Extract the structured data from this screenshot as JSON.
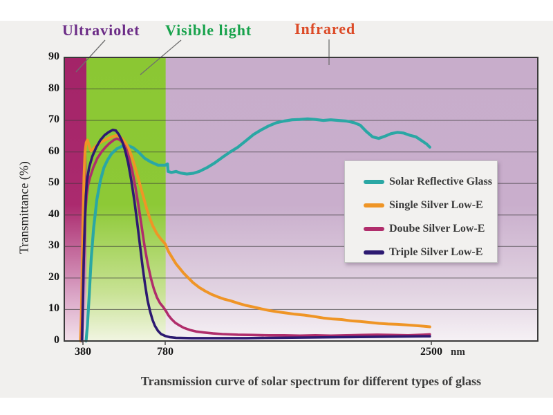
{
  "figure": {
    "caption": "Transmission curve of solar spectrum for different types of glass",
    "x_unit_label": "nm"
  },
  "chart_data": {
    "type": "line",
    "title": "Transmission curve of solar spectrum for different types of glass",
    "ylabel": "Transmittance (%)",
    "x_unit": "nm",
    "grid": true,
    "background_color": "#f1f0ee",
    "y_axis": {
      "min": 0,
      "max": 90,
      "ticks": [
        0,
        10,
        20,
        30,
        40,
        50,
        60,
        70,
        80,
        90
      ]
    },
    "x_axis": {
      "tick_labels": [
        "380",
        "780",
        "2500"
      ],
      "ticks_nm": [
        380,
        780,
        2500
      ],
      "anchors": [
        [
          380,
          0.0394
        ],
        [
          780,
          0.2131
        ],
        [
          2500,
          0.7752
        ]
      ]
    },
    "regions": [
      {
        "label": "Ultraviolet",
        "label_color": "#6b2b86",
        "start_nm": null,
        "end_nm": 397,
        "band_colors": [
          "#a32468",
          "#ab2a6e",
          "#d9a2c4",
          "#f2e0ea"
        ]
      },
      {
        "label": "Visible light",
        "label_color": "#17a24b",
        "start_nm": 397,
        "end_nm": 783,
        "band_colors": [
          "#8bc733",
          "#8dc936",
          "#c8e294",
          "#f1f5e2"
        ]
      },
      {
        "label": "Infrared",
        "label_color": "#dc4a26",
        "start_nm": 783,
        "end_nm": null,
        "band_colors": [
          "#c8adcb",
          "#c9aecc",
          "#e2d4e2",
          "#f6f1f5"
        ]
      }
    ],
    "legend": {
      "position": "right-middle",
      "entries": [
        "Solar Reflective Glass",
        "Single Silver Low-E",
        "Doube Silver Low-E",
        "Triple Silver Low-E"
      ]
    },
    "series": [
      {
        "name": "Solar Reflective Glass",
        "color": "#2aa7a4",
        "width": 4.2,
        "points": [
          [
            395,
            0
          ],
          [
            402,
            5
          ],
          [
            410,
            14
          ],
          [
            420,
            26
          ],
          [
            432,
            36
          ],
          [
            448,
            45
          ],
          [
            465,
            51
          ],
          [
            482,
            55
          ],
          [
            500,
            57.5
          ],
          [
            520,
            59.5
          ],
          [
            545,
            61
          ],
          [
            570,
            61.8
          ],
          [
            600,
            62
          ],
          [
            625,
            61.3
          ],
          [
            650,
            60
          ],
          [
            680,
            58
          ],
          [
            710,
            56.8
          ],
          [
            745,
            55.8
          ],
          [
            780,
            55.8
          ],
          [
            795,
            56.2
          ],
          [
            799,
            53.8
          ],
          [
            820,
            53.5
          ],
          [
            850,
            53.8
          ],
          [
            880,
            53.3
          ],
          [
            920,
            53
          ],
          [
            960,
            53.2
          ],
          [
            1000,
            53.8
          ],
          [
            1050,
            55
          ],
          [
            1100,
            56.5
          ],
          [
            1150,
            58.3
          ],
          [
            1200,
            60
          ],
          [
            1250,
            61.5
          ],
          [
            1300,
            63.5
          ],
          [
            1350,
            65.5
          ],
          [
            1400,
            67
          ],
          [
            1450,
            68.3
          ],
          [
            1500,
            69.3
          ],
          [
            1550,
            69.8
          ],
          [
            1600,
            70.2
          ],
          [
            1650,
            70.3
          ],
          [
            1700,
            70.5
          ],
          [
            1750,
            70.3
          ],
          [
            1800,
            70
          ],
          [
            1850,
            70.2
          ],
          [
            1900,
            70
          ],
          [
            1950,
            69.8
          ],
          [
            2000,
            69.3
          ],
          [
            2040,
            68.5
          ],
          [
            2080,
            66.5
          ],
          [
            2120,
            64.8
          ],
          [
            2160,
            64.3
          ],
          [
            2200,
            65
          ],
          [
            2240,
            65.8
          ],
          [
            2280,
            66.2
          ],
          [
            2320,
            66
          ],
          [
            2360,
            65.3
          ],
          [
            2400,
            64.8
          ],
          [
            2440,
            63.5
          ],
          [
            2470,
            62.5
          ],
          [
            2490,
            61.5
          ]
        ]
      },
      {
        "name": "Single Silver Low-E",
        "color": "#ef9526",
        "width": 4,
        "points": [
          [
            368,
            0
          ],
          [
            372,
            8
          ],
          [
            376,
            22
          ],
          [
            380,
            38
          ],
          [
            385,
            52
          ],
          [
            390,
            60
          ],
          [
            396,
            63
          ],
          [
            402,
            63.8
          ],
          [
            408,
            62.5
          ],
          [
            414,
            61
          ],
          [
            420,
            60.3
          ],
          [
            430,
            61
          ],
          [
            445,
            62
          ],
          [
            460,
            62.8
          ],
          [
            480,
            63.5
          ],
          [
            500,
            64.2
          ],
          [
            520,
            64.8
          ],
          [
            540,
            65.2
          ],
          [
            555,
            65
          ],
          [
            570,
            64.3
          ],
          [
            585,
            63
          ],
          [
            600,
            61.5
          ],
          [
            615,
            59
          ],
          [
            630,
            56
          ],
          [
            645,
            52.5
          ],
          [
            660,
            49
          ],
          [
            675,
            45.5
          ],
          [
            690,
            42
          ],
          [
            705,
            39
          ],
          [
            720,
            36.5
          ],
          [
            740,
            34
          ],
          [
            760,
            32.3
          ],
          [
            780,
            30.8
          ],
          [
            800,
            28.5
          ],
          [
            825,
            26.5
          ],
          [
            850,
            24.5
          ],
          [
            875,
            23
          ],
          [
            900,
            21.5
          ],
          [
            930,
            20
          ],
          [
            960,
            18.5
          ],
          [
            1000,
            17
          ],
          [
            1040,
            15.8
          ],
          [
            1080,
            14.8
          ],
          [
            1120,
            14
          ],
          [
            1160,
            13.3
          ],
          [
            1200,
            12.8
          ],
          [
            1250,
            12
          ],
          [
            1300,
            11.3
          ],
          [
            1350,
            10.8
          ],
          [
            1400,
            10.2
          ],
          [
            1450,
            9.7
          ],
          [
            1500,
            9.3
          ],
          [
            1560,
            8.9
          ],
          [
            1620,
            8.5
          ],
          [
            1680,
            8.2
          ],
          [
            1740,
            7.8
          ],
          [
            1800,
            7.3
          ],
          [
            1860,
            7
          ],
          [
            1920,
            6.8
          ],
          [
            1980,
            6.4
          ],
          [
            2040,
            6.2
          ],
          [
            2100,
            5.9
          ],
          [
            2160,
            5.6
          ],
          [
            2220,
            5.4
          ],
          [
            2280,
            5.3
          ],
          [
            2340,
            5.1
          ],
          [
            2400,
            4.9
          ],
          [
            2450,
            4.7
          ],
          [
            2490,
            4.5
          ]
        ]
      },
      {
        "name": "Doube Silver Low-E",
        "color": "#b02d6b",
        "width": 3.6,
        "points": [
          [
            374,
            0
          ],
          [
            378,
            10
          ],
          [
            382,
            22
          ],
          [
            387,
            33
          ],
          [
            392,
            41
          ],
          [
            398,
            46
          ],
          [
            405,
            49.5
          ],
          [
            415,
            52
          ],
          [
            430,
            55
          ],
          [
            450,
            58
          ],
          [
            470,
            60
          ],
          [
            490,
            61.5
          ],
          [
            510,
            62.8
          ],
          [
            530,
            63.8
          ],
          [
            545,
            64.2
          ],
          [
            560,
            63.8
          ],
          [
            575,
            62.8
          ],
          [
            590,
            61
          ],
          [
            605,
            58
          ],
          [
            620,
            54
          ],
          [
            635,
            49
          ],
          [
            650,
            43
          ],
          [
            665,
            36.5
          ],
          [
            680,
            30
          ],
          [
            695,
            24.5
          ],
          [
            710,
            20
          ],
          [
            725,
            16.5
          ],
          [
            740,
            13.8
          ],
          [
            755,
            12
          ],
          [
            770,
            10.8
          ],
          [
            785,
            9.5
          ],
          [
            800,
            8.2
          ],
          [
            820,
            7
          ],
          [
            845,
            5.8
          ],
          [
            870,
            5
          ],
          [
            900,
            4.2
          ],
          [
            940,
            3.5
          ],
          [
            980,
            3
          ],
          [
            1030,
            2.7
          ],
          [
            1090,
            2.4
          ],
          [
            1150,
            2.2
          ],
          [
            1250,
            2
          ],
          [
            1350,
            1.9
          ],
          [
            1450,
            1.8
          ],
          [
            1550,
            1.8
          ],
          [
            1650,
            1.7
          ],
          [
            1750,
            1.8
          ],
          [
            1850,
            1.7
          ],
          [
            1950,
            1.8
          ],
          [
            2050,
            1.9
          ],
          [
            2150,
            2
          ],
          [
            2250,
            1.9
          ],
          [
            2350,
            1.8
          ],
          [
            2450,
            2
          ],
          [
            2490,
            2.1
          ]
        ]
      },
      {
        "name": "Triple Silver Low-E",
        "color": "#2d1a71",
        "width": 3.6,
        "points": [
          [
            376,
            0
          ],
          [
            380,
            12
          ],
          [
            384,
            26
          ],
          [
            389,
            38
          ],
          [
            394,
            46
          ],
          [
            400,
            51
          ],
          [
            410,
            55
          ],
          [
            425,
            58.5
          ],
          [
            445,
            61.5
          ],
          [
            465,
            63.8
          ],
          [
            485,
            65.3
          ],
          [
            505,
            66.3
          ],
          [
            525,
            67
          ],
          [
            540,
            66.8
          ],
          [
            555,
            65.5
          ],
          [
            570,
            63.5
          ],
          [
            585,
            60.5
          ],
          [
            600,
            56.5
          ],
          [
            615,
            51
          ],
          [
            630,
            44.5
          ],
          [
            645,
            37
          ],
          [
            658,
            30
          ],
          [
            670,
            23.5
          ],
          [
            682,
            18
          ],
          [
            694,
            13
          ],
          [
            706,
            9.5
          ],
          [
            718,
            6.8
          ],
          [
            730,
            4.8
          ],
          [
            745,
            3.2
          ],
          [
            760,
            2.2
          ],
          [
            780,
            1.6
          ],
          [
            810,
            1.2
          ],
          [
            850,
            1
          ],
          [
            950,
            0.9
          ],
          [
            1100,
            0.9
          ],
          [
            1300,
            0.9
          ],
          [
            1500,
            1
          ],
          [
            1700,
            1.1
          ],
          [
            1900,
            1.2
          ],
          [
            2100,
            1.3
          ],
          [
            2300,
            1.4
          ],
          [
            2450,
            1.5
          ],
          [
            2490,
            1.5
          ]
        ]
      }
    ]
  }
}
